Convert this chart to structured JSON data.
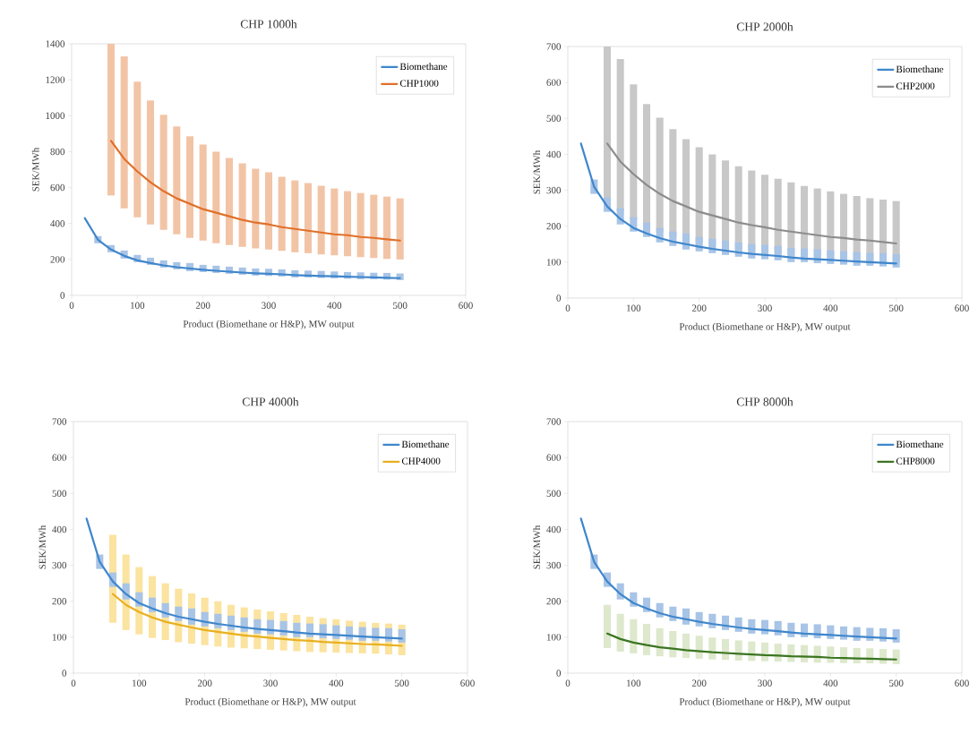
{
  "chart_data": [
    {
      "type": "line",
      "title": "CHP 1000h",
      "xlabel": "Product (Biomethane or H&P), MW output",
      "ylabel": "SEK/MWh",
      "xlim": [
        0,
        600
      ],
      "xticks": [
        0,
        100,
        200,
        300,
        400,
        500,
        600
      ],
      "ylim": [
        0,
        1400
      ],
      "yticks": [
        0,
        200,
        400,
        600,
        800,
        1000,
        1200,
        1400
      ],
      "legend": "top right",
      "series": [
        {
          "type": "bar",
          "color": "#f2c4a6",
          "x": [
            60,
            80,
            100,
            120,
            140,
            160,
            180,
            200,
            220,
            240,
            260,
            280,
            300,
            320,
            340,
            360,
            380,
            400,
            420,
            440,
            460,
            480,
            500
          ],
          "base": [
            555,
            485,
            435,
            395,
            365,
            340,
            320,
            305,
            290,
            280,
            270,
            262,
            255,
            248,
            240,
            235,
            228,
            223,
            218,
            213,
            208,
            203,
            200
          ],
          "values": [
            845,
            845,
            755,
            690,
            640,
            600,
            565,
            535,
            510,
            485,
            465,
            443,
            430,
            412,
            400,
            390,
            382,
            372,
            362,
            357,
            352,
            347,
            340
          ]
        },
        {
          "type": "bar",
          "color": "#a8c4e6",
          "x": [
            40,
            60,
            80,
            100,
            120,
            140,
            160,
            180,
            200,
            220,
            240,
            260,
            280,
            300,
            320,
            340,
            360,
            380,
            400,
            420,
            440,
            460,
            480,
            500
          ],
          "base": [
            290,
            240,
            205,
            185,
            170,
            155,
            145,
            135,
            130,
            125,
            120,
            115,
            110,
            108,
            105,
            100,
            100,
            97,
            95,
            93,
            90,
            90,
            88,
            85
          ],
          "values": [
            40,
            40,
            45,
            40,
            40,
            40,
            40,
            45,
            40,
            40,
            40,
            40,
            40,
            40,
            40,
            40,
            38,
            39,
            38,
            37,
            38,
            36,
            37,
            37
          ]
        },
        {
          "name": "Biomethane",
          "color": "#3f86cc",
          "x": [
            20,
            40,
            60,
            80,
            100,
            120,
            140,
            160,
            180,
            200,
            220,
            240,
            260,
            280,
            300,
            320,
            340,
            360,
            380,
            400,
            420,
            440,
            460,
            480,
            500
          ],
          "values": [
            430,
            310,
            255,
            220,
            195,
            180,
            167,
            157,
            150,
            143,
            137,
            132,
            127,
            123,
            120,
            117,
            113,
            110,
            108,
            106,
            104,
            102,
            100,
            98,
            96
          ]
        },
        {
          "name": "CHP1000",
          "color": "#e0702a",
          "x": [
            60,
            80,
            100,
            120,
            140,
            160,
            180,
            200,
            220,
            240,
            260,
            280,
            300,
            320,
            340,
            360,
            380,
            400,
            420,
            440,
            460,
            480,
            500
          ],
          "values": [
            860,
            760,
            690,
            630,
            580,
            540,
            510,
            480,
            460,
            440,
            420,
            405,
            395,
            380,
            370,
            360,
            350,
            340,
            335,
            325,
            320,
            312,
            305
          ]
        }
      ]
    },
    {
      "type": "line",
      "title": "CHP 2000h",
      "xlabel": "Product (Biomethane or H&P), MW output",
      "ylabel": "SEK/MWh",
      "xlim": [
        0,
        600
      ],
      "xticks": [
        0,
        100,
        200,
        300,
        400,
        500,
        600
      ],
      "ylim": [
        0,
        700
      ],
      "yticks": [
        0,
        100,
        200,
        300,
        400,
        500,
        600,
        700
      ],
      "legend": "top right",
      "series": [
        {
          "type": "bar",
          "color": "#c8c8c8",
          "x": [
            60,
            80,
            100,
            120,
            140,
            160,
            180,
            200,
            220,
            240,
            260,
            280,
            300,
            320,
            340,
            360,
            380,
            400,
            420,
            440,
            460,
            480,
            500
          ],
          "base": [
            278,
            243,
            218,
            198,
            183,
            170,
            160,
            152,
            145,
            140,
            135,
            131,
            127,
            124,
            120,
            117,
            114,
            111,
            109,
            106,
            104,
            101,
            100
          ],
          "values": [
            422,
            422,
            377,
            342,
            319,
            300,
            282,
            268,
            255,
            243,
            232,
            224,
            216,
            208,
            202,
            195,
            191,
            186,
            181,
            178,
            174,
            173,
            170
          ]
        },
        {
          "type": "bar",
          "color": "#a8c4e6",
          "x": [
            40,
            60,
            80,
            100,
            120,
            140,
            160,
            180,
            200,
            220,
            240,
            260,
            280,
            300,
            320,
            340,
            360,
            380,
            400,
            420,
            440,
            460,
            480,
            500
          ],
          "base": [
            290,
            240,
            205,
            185,
            170,
            155,
            145,
            135,
            130,
            125,
            120,
            115,
            110,
            108,
            105,
            100,
            100,
            97,
            95,
            93,
            90,
            90,
            88,
            85
          ],
          "values": [
            40,
            40,
            45,
            40,
            40,
            40,
            40,
            45,
            40,
            40,
            40,
            40,
            40,
            40,
            40,
            40,
            38,
            39,
            38,
            37,
            38,
            36,
            37,
            37
          ]
        },
        {
          "name": "Biomethane",
          "color": "#3f86cc",
          "x": [
            20,
            40,
            60,
            80,
            100,
            120,
            140,
            160,
            180,
            200,
            220,
            240,
            260,
            280,
            300,
            320,
            340,
            360,
            380,
            400,
            420,
            440,
            460,
            480,
            500
          ],
          "values": [
            430,
            310,
            255,
            220,
            195,
            180,
            167,
            157,
            150,
            143,
            137,
            132,
            127,
            123,
            120,
            117,
            113,
            110,
            108,
            106,
            104,
            102,
            100,
            98,
            96
          ]
        },
        {
          "name": "CHP2000",
          "color": "#8c8c8c",
          "x": [
            60,
            80,
            100,
            120,
            140,
            160,
            180,
            200,
            220,
            240,
            260,
            280,
            300,
            320,
            340,
            360,
            380,
            400,
            420,
            440,
            460,
            480,
            500
          ],
          "values": [
            430,
            380,
            345,
            315,
            290,
            270,
            255,
            240,
            230,
            220,
            210,
            203,
            197,
            190,
            185,
            180,
            175,
            170,
            167,
            163,
            160,
            156,
            152
          ]
        }
      ]
    },
    {
      "type": "line",
      "title": "CHP 4000h",
      "xlabel": "Product (Biomethane or H&P), MW output",
      "ylabel": "SEK/MWh",
      "xlim": [
        0,
        600
      ],
      "xticks": [
        0,
        100,
        200,
        300,
        400,
        500,
        600
      ],
      "ylim": [
        0,
        700
      ],
      "yticks": [
        0,
        100,
        200,
        300,
        400,
        500,
        600,
        700
      ],
      "legend": "top right",
      "series": [
        {
          "type": "bar",
          "color": "#fbe3a0",
          "x": [
            60,
            80,
            100,
            120,
            140,
            160,
            180,
            200,
            220,
            240,
            260,
            280,
            300,
            320,
            340,
            360,
            380,
            400,
            420,
            440,
            460,
            480,
            500
          ],
          "base": [
            140,
            120,
            108,
            98,
            92,
            86,
            82,
            78,
            74,
            71,
            69,
            67,
            65,
            63,
            61,
            59,
            58,
            57,
            56,
            55,
            54,
            52,
            50
          ],
          "values": [
            245,
            210,
            187,
            172,
            158,
            149,
            140,
            132,
            126,
            119,
            114,
            110,
            107,
            104,
            101,
            98,
            95,
            93,
            90,
            88,
            86,
            86,
            85
          ]
        },
        {
          "type": "bar",
          "color": "#a8c4e6",
          "x": [
            40,
            60,
            80,
            100,
            120,
            140,
            160,
            180,
            200,
            220,
            240,
            260,
            280,
            300,
            320,
            340,
            360,
            380,
            400,
            420,
            440,
            460,
            480,
            500
          ],
          "base": [
            290,
            240,
            205,
            185,
            170,
            155,
            145,
            135,
            130,
            125,
            120,
            115,
            110,
            108,
            105,
            100,
            100,
            97,
            95,
            93,
            90,
            90,
            88,
            85
          ],
          "values": [
            40,
            40,
            45,
            40,
            40,
            40,
            40,
            45,
            40,
            40,
            40,
            40,
            40,
            40,
            40,
            40,
            38,
            39,
            38,
            37,
            38,
            36,
            37,
            37
          ]
        },
        {
          "name": "Biomethane",
          "color": "#3f86cc",
          "x": [
            20,
            40,
            60,
            80,
            100,
            120,
            140,
            160,
            180,
            200,
            220,
            240,
            260,
            280,
            300,
            320,
            340,
            360,
            380,
            400,
            420,
            440,
            460,
            480,
            500
          ],
          "values": [
            430,
            310,
            255,
            220,
            195,
            180,
            167,
            157,
            150,
            143,
            137,
            132,
            127,
            123,
            120,
            117,
            113,
            110,
            108,
            106,
            104,
            102,
            100,
            98,
            96
          ]
        },
        {
          "name": "CHP4000",
          "color": "#e8b020",
          "x": [
            60,
            80,
            100,
            120,
            140,
            160,
            180,
            200,
            220,
            240,
            260,
            280,
            300,
            320,
            340,
            360,
            380,
            400,
            420,
            440,
            460,
            480,
            500
          ],
          "values": [
            220,
            190,
            170,
            155,
            143,
            135,
            127,
            120,
            115,
            110,
            105,
            102,
            98,
            95,
            92,
            90,
            87,
            85,
            83,
            81,
            80,
            78,
            76
          ]
        }
      ]
    },
    {
      "type": "line",
      "title": "CHP 8000h",
      "xlabel": "Product (Biomethane or H&P), MW output",
      "ylabel": "SEK/MWh",
      "xlim": [
        0,
        600
      ],
      "xticks": [
        0,
        100,
        200,
        300,
        400,
        500,
        600
      ],
      "ylim": [
        0,
        700
      ],
      "yticks": [
        0,
        100,
        200,
        300,
        400,
        500,
        600,
        700
      ],
      "legend": "top right",
      "series": [
        {
          "type": "bar",
          "color": "#dde8cc",
          "x": [
            60,
            80,
            100,
            120,
            140,
            160,
            180,
            200,
            220,
            240,
            260,
            280,
            300,
            320,
            340,
            360,
            380,
            400,
            420,
            440,
            460,
            480,
            500
          ],
          "base": [
            70,
            60,
            55,
            50,
            47,
            44,
            42,
            40,
            38,
            37,
            35,
            34,
            33,
            32,
            31,
            30,
            29,
            29,
            28,
            27,
            27,
            26,
            25
          ],
          "values": [
            120,
            105,
            95,
            87,
            78,
            73,
            68,
            64,
            61,
            58,
            56,
            54,
            52,
            50,
            49,
            48,
            47,
            45,
            44,
            43,
            42,
            41,
            41
          ]
        },
        {
          "type": "bar",
          "color": "#a8c4e6",
          "x": [
            40,
            60,
            80,
            100,
            120,
            140,
            160,
            180,
            200,
            220,
            240,
            260,
            280,
            300,
            320,
            340,
            360,
            380,
            400,
            420,
            440,
            460,
            480,
            500
          ],
          "base": [
            290,
            240,
            205,
            185,
            170,
            155,
            145,
            135,
            130,
            125,
            120,
            115,
            110,
            108,
            105,
            100,
            100,
            97,
            95,
            93,
            90,
            90,
            88,
            85
          ],
          "values": [
            40,
            40,
            45,
            40,
            40,
            40,
            40,
            45,
            40,
            40,
            40,
            40,
            40,
            40,
            40,
            40,
            38,
            39,
            38,
            37,
            38,
            36,
            37,
            37
          ]
        },
        {
          "name": "Biomethane",
          "color": "#3f86cc",
          "x": [
            20,
            40,
            60,
            80,
            100,
            120,
            140,
            160,
            180,
            200,
            220,
            240,
            260,
            280,
            300,
            320,
            340,
            360,
            380,
            400,
            420,
            440,
            460,
            480,
            500
          ],
          "values": [
            430,
            310,
            255,
            220,
            195,
            180,
            167,
            157,
            150,
            143,
            137,
            132,
            127,
            123,
            120,
            117,
            113,
            110,
            108,
            106,
            104,
            102,
            100,
            98,
            96
          ]
        },
        {
          "name": "CHP8000",
          "color": "#3a7520",
          "x": [
            60,
            80,
            100,
            120,
            140,
            160,
            180,
            200,
            220,
            240,
            260,
            280,
            300,
            320,
            340,
            360,
            380,
            400,
            420,
            440,
            460,
            480,
            500
          ],
          "values": [
            110,
            95,
            85,
            78,
            72,
            68,
            64,
            61,
            58,
            56,
            54,
            52,
            50,
            49,
            47,
            46,
            45,
            43,
            42,
            41,
            40,
            39,
            38
          ]
        }
      ]
    }
  ]
}
